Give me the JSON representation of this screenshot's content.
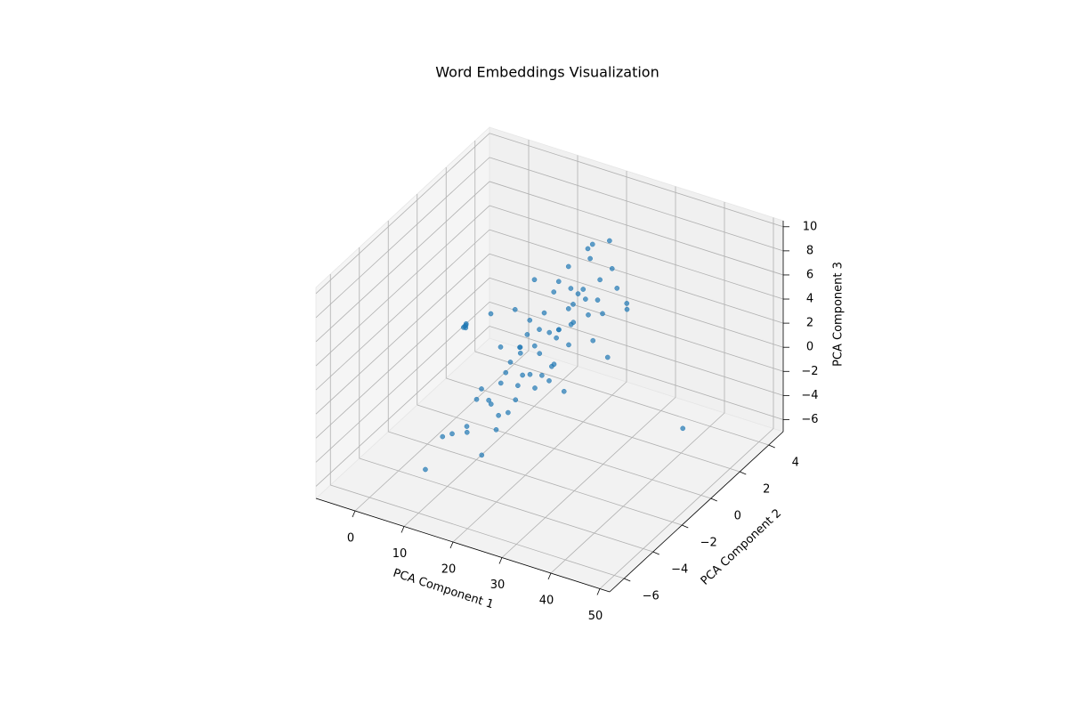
{
  "chart_data": {
    "type": "scatter3d",
    "title": "Word Embeddings Visualization",
    "xlabel": "PCA Component 1",
    "ylabel": "PCA Component 2",
    "zlabel": "PCA Component 3",
    "color": "#1f77b4",
    "grid": true,
    "xlim": [
      -8,
      52
    ],
    "ylim": [
      -7,
      5
    ],
    "zlim": [
      -7,
      10.5
    ],
    "xticks": [
      0,
      10,
      20,
      30,
      40,
      50
    ],
    "yticks": [
      {
        "value": -6,
        "label": "−6"
      },
      {
        "value": -4,
        "label": "−4"
      },
      {
        "value": -2,
        "label": "−2"
      },
      0,
      2,
      4
    ],
    "zticks": [
      {
        "value": -6,
        "label": "−6"
      },
      {
        "value": -4,
        "label": "−4"
      },
      {
        "value": -2,
        "label": "−2"
      },
      0,
      2,
      4,
      6,
      8,
      10
    ],
    "x": [
      16,
      14,
      18,
      17,
      15,
      13,
      19,
      20,
      16,
      15,
      17,
      18,
      14,
      16,
      19,
      21,
      15,
      17,
      16,
      18,
      12,
      13,
      22,
      20,
      16,
      17,
      15,
      14,
      18,
      19,
      16,
      15,
      17,
      20,
      13,
      18,
      16,
      14,
      19,
      17,
      15,
      16,
      18,
      21,
      12,
      17,
      16,
      19,
      15,
      14,
      23,
      10,
      11,
      25,
      18,
      16,
      14,
      20,
      17,
      15,
      -4.2,
      -4.1,
      -4.3,
      -4.2,
      -4.0,
      11.4,
      37.4,
      8,
      9,
      22,
      26,
      13,
      19,
      24,
      10
    ],
    "y": [
      0,
      -1,
      1,
      2,
      -2,
      0.5,
      2.5,
      3,
      1.5,
      -0.5,
      0,
      2,
      -2.5,
      -1,
      3.5,
      3,
      1,
      -1.5,
      2.5,
      0.5,
      -1,
      -3,
      2,
      1,
      -2,
      1,
      0,
      1,
      -1,
      1.5,
      3,
      2,
      3.5,
      4,
      -2,
      -2,
      0.5,
      -3,
      0,
      -3,
      -1.5,
      4,
      4.5,
      4,
      0,
      2,
      -2.5,
      -1,
      3,
      2,
      4,
      -1,
      -3,
      2,
      3,
      1,
      -4,
      2,
      -4,
      2,
      2,
      2.05,
      1.95,
      2.1,
      2,
      -6,
      3,
      -3,
      -4,
      0,
      3,
      1,
      -2,
      1,
      1
    ],
    "z": [
      1,
      0.5,
      1.5,
      2,
      0,
      1,
      2.5,
      2,
      0,
      -1,
      0.5,
      1,
      -1,
      2,
      3,
      1,
      2.5,
      -0.5,
      3,
      -1,
      1.5,
      -0.5,
      0,
      0.5,
      1,
      -1.5,
      3,
      1,
      0,
      1.5,
      2,
      4,
      4.5,
      3.5,
      -2,
      -1,
      -2,
      0.5,
      2.5,
      -2.5,
      -3,
      5,
      5,
      2,
      3.5,
      5.5,
      -2,
      -1,
      1,
      3,
      1,
      4,
      -3,
      -1,
      6,
      -3,
      -2,
      4,
      -3.5,
      0,
      -2.2,
      -2.15,
      -2.25,
      -2.1,
      -2.3,
      -3.2,
      -6.4,
      -4,
      -3,
      -2,
      2,
      5,
      3,
      3.5,
      -1
    ]
  }
}
